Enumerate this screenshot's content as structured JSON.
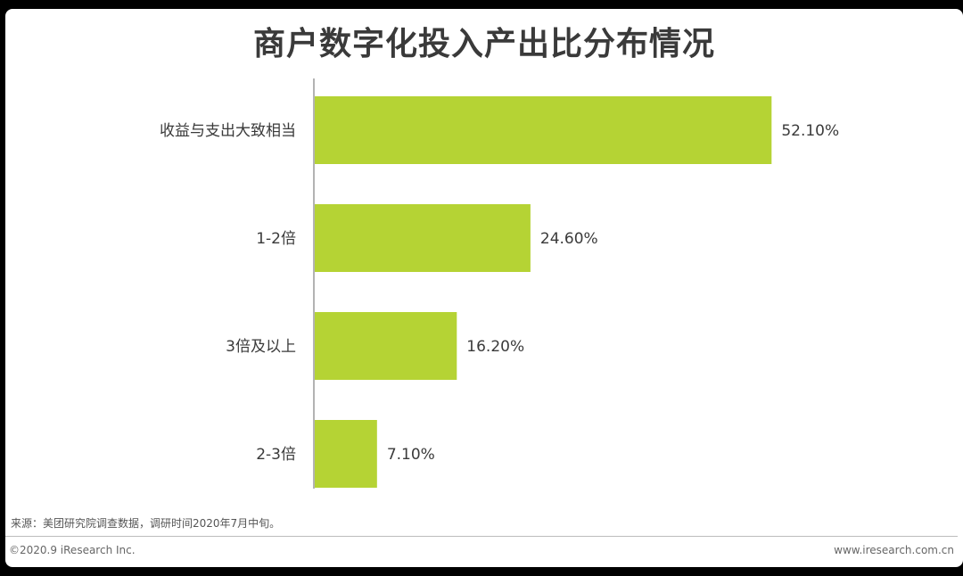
{
  "chart_data": {
    "type": "bar",
    "orientation": "horizontal",
    "title": "商户数字化投入产出比分布情况",
    "categories": [
      "收益与支出大致相当",
      "1-2倍",
      "3倍及以上",
      "2-3倍"
    ],
    "values": [
      52.1,
      24.6,
      16.2,
      7.1
    ],
    "value_labels": [
      "52.10%",
      "24.60%",
      "16.20%",
      "7.10%"
    ],
    "unit": "%",
    "xlim": [
      0,
      60
    ],
    "bar_color": "#b5d334",
    "grid": false,
    "legend": "none"
  },
  "footer": {
    "source": "来源：美团研究院调查数据，调研时间2020年7月中旬。",
    "copyright": "©2020.9 iResearch Inc.",
    "website": "www.iresearch.com.cn"
  }
}
